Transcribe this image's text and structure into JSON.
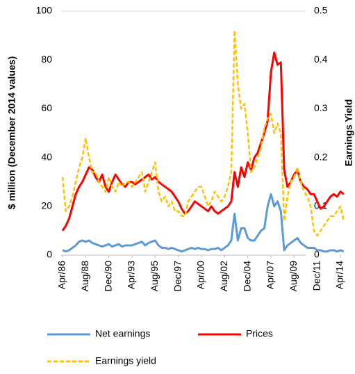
{
  "chart_data": {
    "type": "line",
    "y_label": "$ million (December 2014 values)",
    "y2_label": "Earnings Yield",
    "categories": [
      "Apr/86",
      null,
      null,
      null,
      null,
      null,
      null,
      "Aug/88",
      null,
      null,
      null,
      null,
      null,
      null,
      "Dec/90",
      null,
      null,
      null,
      null,
      null,
      null,
      "Apr/93",
      null,
      null,
      null,
      null,
      null,
      null,
      "Aug/95",
      null,
      null,
      null,
      null,
      null,
      null,
      "Dec/97",
      null,
      null,
      null,
      null,
      null,
      null,
      "Apr/00",
      null,
      null,
      null,
      null,
      null,
      null,
      "Aug/02",
      null,
      null,
      null,
      null,
      null,
      null,
      "Dec/04",
      null,
      null,
      null,
      null,
      null,
      null,
      "Apr/07",
      null,
      null,
      null,
      null,
      null,
      null,
      "Aug/09",
      null,
      null,
      null,
      null,
      null,
      null,
      "Dec/11",
      null,
      null,
      null,
      null,
      null,
      null,
      "Apr/14",
      null
    ],
    "series": [
      {
        "name": "Net earnings",
        "color": "#5b9bd5",
        "values": [
          2,
          1.5,
          2,
          3,
          4,
          5.5,
          6,
          5.5,
          6,
          5,
          4.5,
          4,
          3.5,
          4,
          4.5,
          3.5,
          4,
          4.5,
          3.5,
          4,
          4,
          4,
          4.5,
          5,
          5.5,
          4,
          5,
          5.5,
          6,
          4,
          3,
          3,
          2.5,
          3,
          2.5,
          2,
          1.5,
          2,
          2.5,
          3,
          2.5,
          3,
          2.5,
          2.5,
          2,
          2.5,
          2.5,
          3,
          2,
          3,
          4,
          6,
          17,
          6,
          11,
          11,
          7,
          6,
          6,
          8,
          10,
          11,
          20,
          25,
          20,
          22,
          18,
          2,
          4,
          5,
          6,
          7,
          5,
          4,
          3,
          3,
          3,
          2,
          2,
          1.5,
          1.5,
          2,
          2,
          1.5,
          2,
          1.5
        ]
      },
      {
        "name": "Prices",
        "color": "#ff0000",
        "values": [
          10,
          12,
          15,
          20,
          25,
          28,
          30,
          33,
          36,
          35,
          32,
          30,
          33,
          28,
          26,
          30,
          33,
          31,
          29,
          28,
          30,
          30,
          29,
          30,
          31,
          32,
          33,
          31,
          32,
          30,
          29,
          28,
          27,
          26,
          24,
          22,
          19,
          17,
          18,
          20,
          22,
          21,
          20,
          19,
          18,
          20,
          18,
          17,
          18,
          19,
          20,
          22,
          34,
          28,
          36,
          32,
          38,
          35,
          40,
          42,
          46,
          50,
          55,
          75,
          83,
          78,
          79,
          35,
          28,
          30,
          33,
          35,
          30,
          28,
          27,
          25,
          25,
          22,
          19,
          20,
          22,
          24,
          25,
          24,
          26,
          25
        ]
      },
      {
        "name": "Earnings yield",
        "color": "#ffc000",
        "axis": "y2",
        "dashed": true,
        "values": [
          0.16,
          0.09,
          0.1,
          0.12,
          0.15,
          0.18,
          0.2,
          0.24,
          0.2,
          0.17,
          0.17,
          0.15,
          0.14,
          0.13,
          0.16,
          0.14,
          0.13,
          0.15,
          0.14,
          0.15,
          0.15,
          0.14,
          0.15,
          0.16,
          0.17,
          0.13,
          0.15,
          0.17,
          0.19,
          0.13,
          0.11,
          0.12,
          0.1,
          0.11,
          0.09,
          0.09,
          0.08,
          0.08,
          0.11,
          0.12,
          0.13,
          0.14,
          0.14,
          0.12,
          0.1,
          0.11,
          0.13,
          0.12,
          0.11,
          0.12,
          0.14,
          0.17,
          0.46,
          0.35,
          0.3,
          0.31,
          0.25,
          0.17,
          0.18,
          0.2,
          0.22,
          0.26,
          0.28,
          0.29,
          0.25,
          0.27,
          0.25,
          0.07,
          0.12,
          0.15,
          0.16,
          0.18,
          0.15,
          0.13,
          0.12,
          0.1,
          0.05,
          0.04,
          0.05,
          0.06,
          0.07,
          0.08,
          0.08,
          0.09,
          0.1,
          0.07
        ]
      }
    ],
    "ylim": [
      0,
      100
    ],
    "yticks": [
      0,
      20,
      40,
      60,
      80,
      100
    ],
    "y2lim": [
      0,
      0.5
    ],
    "y2ticks": [
      0,
      0.1,
      0.2,
      0.3,
      0.4,
      0.5
    ],
    "grid": false
  }
}
